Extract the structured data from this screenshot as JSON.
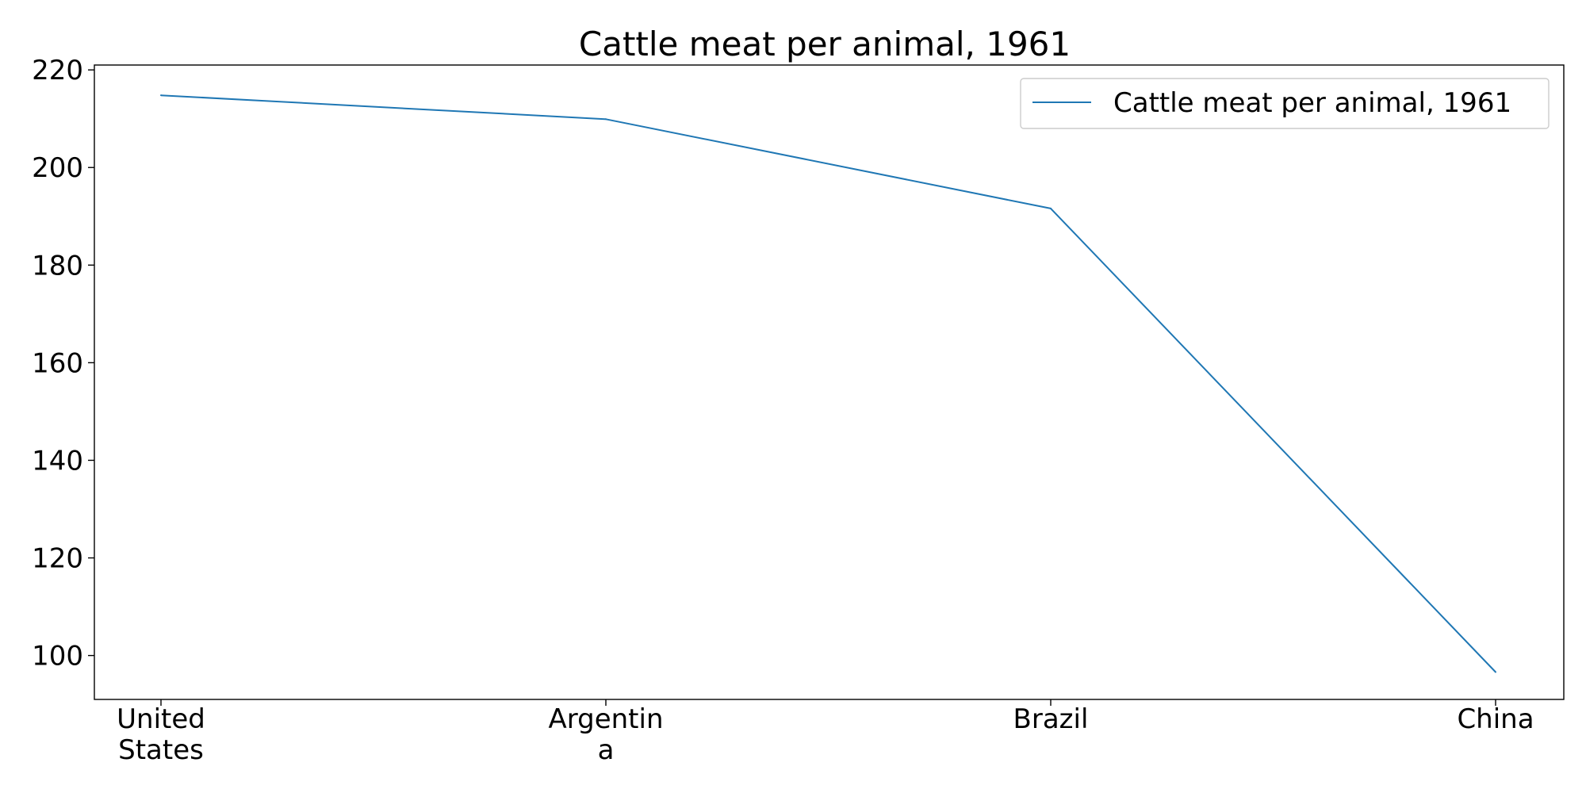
{
  "chart_data": {
    "type": "line",
    "title": "Cattle meat per animal, 1961",
    "categories": [
      [
        "United",
        "States"
      ],
      [
        "Argentin",
        "a"
      ],
      [
        "Brazil"
      ],
      [
        "China"
      ]
    ],
    "series": [
      {
        "name": "Cattle meat per animal, 1961",
        "values": [
          214.8,
          209.9,
          191.6,
          96.6
        ],
        "color": "#1f77b4"
      }
    ],
    "xlabel": "",
    "ylabel": "",
    "ylim": [
      91,
      221
    ],
    "yticks": [
      "100",
      "120",
      "140",
      "160",
      "180",
      "200",
      "220"
    ],
    "grid": false,
    "legend_position": "top-right"
  }
}
